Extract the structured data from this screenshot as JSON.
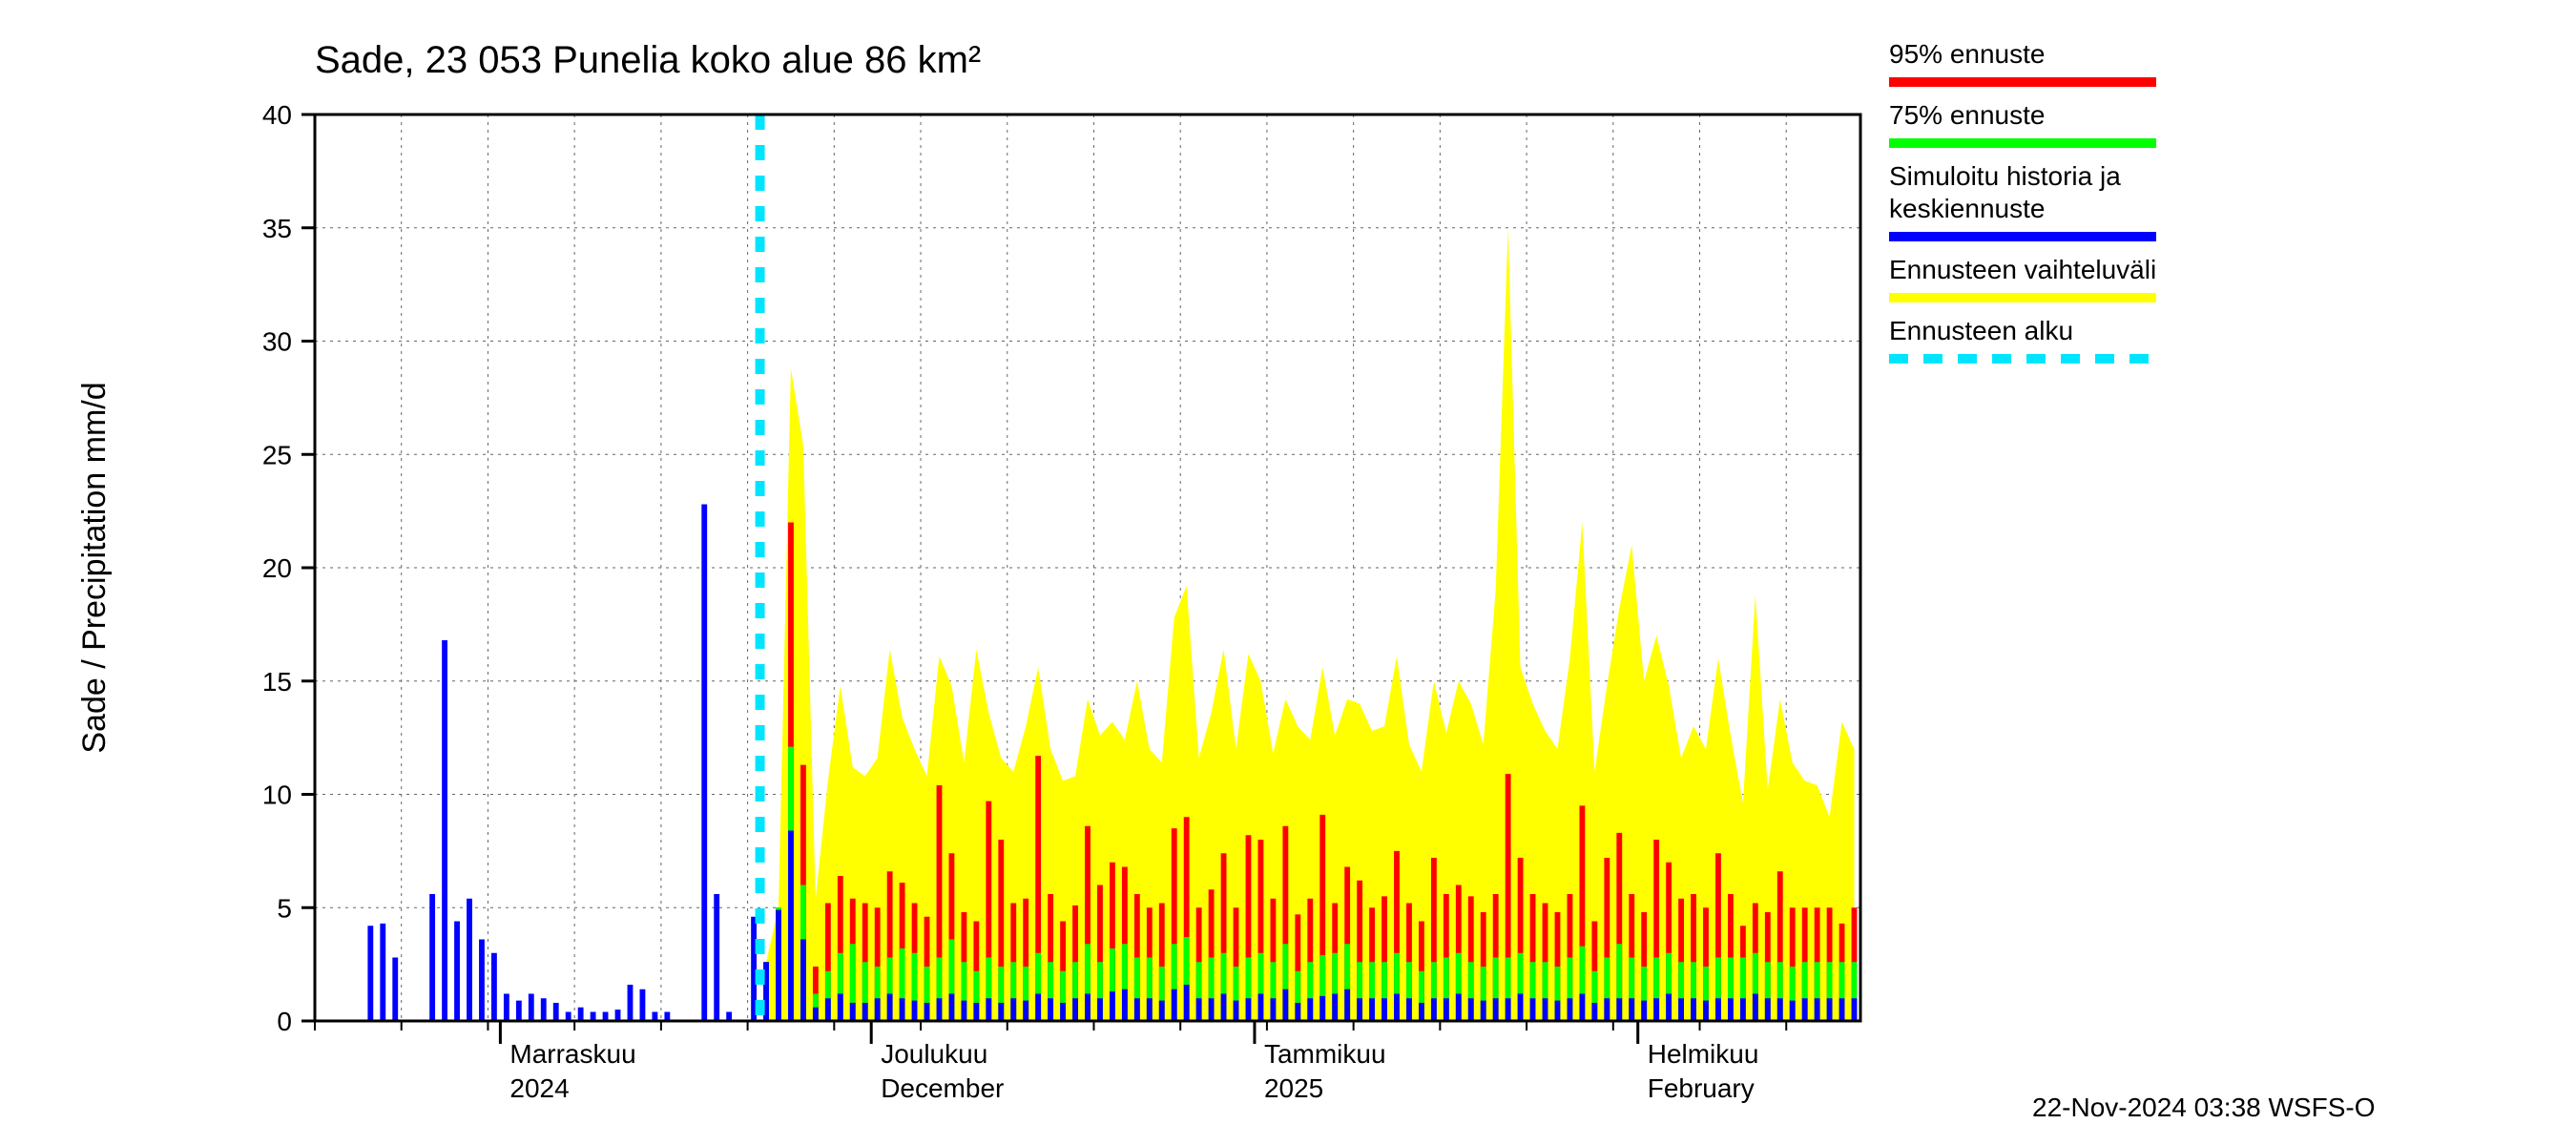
{
  "title": "Sade, 23 053 Punelia koko alue 86 km²",
  "ylabel": "Sade / Precipitation   mm/d",
  "footer": "22-Nov-2024 03:38 WSFS-O",
  "chart": {
    "type": "bar+area",
    "background_color": "#ffffff",
    "grid_color": "#666666",
    "grid_dash": "3,5",
    "axis_color": "#000000",
    "ylim": [
      0,
      40
    ],
    "ytick_step": 5,
    "yticks_labels": [
      "0",
      "5",
      "10",
      "15",
      "20",
      "25",
      "30",
      "35",
      "40"
    ],
    "xticks": [
      {
        "pos": 15,
        "label1": "Marraskuu",
        "label2": "2024"
      },
      {
        "pos": 45,
        "label1": "Joulukuu",
        "label2": "December"
      },
      {
        "pos": 76,
        "label1": "Tammikuu",
        "label2": "2025"
      },
      {
        "pos": 107,
        "label1": "Helmikuu",
        "label2": "February"
      }
    ],
    "x_minor_step": 7,
    "n_days": 125,
    "bar_width_ratio": 0.45,
    "forecast_start_day": 36,
    "series_colors": {
      "blue": "#0000ff",
      "green": "#00ff00",
      "red": "#ff0000",
      "yellow": "#ffff00",
      "cyan": "#00e5ff"
    },
    "history_blue": [
      0,
      0,
      0,
      0,
      4.2,
      4.3,
      2.8,
      0,
      0,
      5.6,
      16.8,
      4.4,
      5.4,
      3.6,
      3.0,
      1.2,
      0.9,
      1.2,
      1.0,
      0.8,
      0.4,
      0.6,
      0.4,
      0.4,
      0.5,
      1.6,
      1.4,
      0.4,
      0.4,
      0,
      0,
      22.8,
      5.6,
      0.4,
      0,
      4.6
    ],
    "forecast_blue": [
      2.6,
      4.9,
      8.4,
      3.6,
      0.6,
      1.0,
      1.2,
      0.8,
      0.8,
      1.0,
      1.2,
      1.0,
      0.9,
      0.8,
      1.0,
      1.2,
      0.9,
      0.8,
      1.0,
      0.8,
      1.0,
      0.9,
      1.2,
      1.0,
      0.8,
      1.0,
      1.2,
      1.0,
      1.3,
      1.4,
      1.0,
      1.0,
      0.9,
      1.4,
      1.6,
      1.0,
      1.0,
      1.2,
      0.9,
      1.0,
      1.2,
      1.0,
      1.4,
      0.8,
      1.0,
      1.1,
      1.2,
      1.4,
      1.0,
      1.0,
      1.0,
      1.2,
      1.0,
      0.8,
      1.0,
      1.0,
      1.2,
      1.0,
      0.9,
      1.0,
      1.0,
      1.2,
      1.0,
      1.0,
      0.9,
      1.0,
      1.2,
      0.8,
      1.0,
      1.0,
      1.0,
      0.9,
      1.0,
      1.2,
      1.0,
      1.0,
      0.9,
      1.0,
      1.0,
      1.0,
      1.2,
      1.0,
      1.0,
      0.9,
      1.0,
      1.0,
      1.0,
      1.0,
      1.0
    ],
    "forecast_green": [
      2.6,
      5.0,
      12.1,
      6.0,
      1.2,
      2.2,
      3.0,
      3.4,
      2.6,
      2.4,
      2.8,
      3.2,
      3.0,
      2.4,
      2.8,
      3.6,
      2.6,
      2.2,
      2.8,
      2.4,
      2.6,
      2.4,
      3.0,
      2.6,
      2.2,
      2.6,
      3.4,
      2.6,
      3.2,
      3.4,
      2.8,
      2.8,
      2.4,
      3.4,
      3.7,
      2.6,
      2.8,
      3.0,
      2.4,
      2.8,
      3.0,
      2.6,
      3.4,
      2.2,
      2.6,
      2.9,
      3.0,
      3.4,
      2.6,
      2.6,
      2.6,
      3.0,
      2.6,
      2.2,
      2.6,
      2.8,
      3.0,
      2.6,
      2.4,
      2.8,
      2.8,
      3.0,
      2.6,
      2.6,
      2.4,
      2.8,
      3.3,
      2.2,
      2.8,
      3.4,
      2.8,
      2.4,
      2.8,
      3.0,
      2.6,
      2.6,
      2.4,
      2.8,
      2.8,
      2.8,
      3.0,
      2.6,
      2.6,
      2.4,
      2.6,
      2.6,
      2.6,
      2.6,
      2.6
    ],
    "forecast_red": [
      2.6,
      5.0,
      22.0,
      11.3,
      2.4,
      5.2,
      6.4,
      5.4,
      5.2,
      5.0,
      6.6,
      6.1,
      5.2,
      4.6,
      10.4,
      7.4,
      4.8,
      4.4,
      9.7,
      8.0,
      5.2,
      5.4,
      11.7,
      5.6,
      4.4,
      5.1,
      8.6,
      6.0,
      7.0,
      6.8,
      5.6,
      5.0,
      5.2,
      8.5,
      9.0,
      5.0,
      5.8,
      7.4,
      5.0,
      8.2,
      8.0,
      5.4,
      8.6,
      4.7,
      5.4,
      9.1,
      5.2,
      6.8,
      6.2,
      5.0,
      5.5,
      7.5,
      5.2,
      4.4,
      7.2,
      5.6,
      6.0,
      5.5,
      4.8,
      5.6,
      10.9,
      7.2,
      5.6,
      5.2,
      4.8,
      5.6,
      9.5,
      4.4,
      7.2,
      8.3,
      5.6,
      4.8,
      8.0,
      7.0,
      5.4,
      5.6,
      5.0,
      7.4,
      5.6,
      4.2,
      5.2,
      4.8,
      6.6,
      5.0,
      5.0,
      5.0,
      5.0,
      4.3,
      5.0
    ],
    "forecast_yellow": [
      2.6,
      5.0,
      28.8,
      25.4,
      5.4,
      10.6,
      14.8,
      11.2,
      10.8,
      11.6,
      16.4,
      13.4,
      12.0,
      10.8,
      16.1,
      14.8,
      11.4,
      16.4,
      13.6,
      11.6,
      11.0,
      13.0,
      15.6,
      12.0,
      10.6,
      10.8,
      14.2,
      12.6,
      13.2,
      12.4,
      15.0,
      12.0,
      11.4,
      17.8,
      19.2,
      11.6,
      13.6,
      16.4,
      12.0,
      16.2,
      15.0,
      11.8,
      14.2,
      13.0,
      12.4,
      15.6,
      12.6,
      14.2,
      14.0,
      12.8,
      13.0,
      16.1,
      12.2,
      11.0,
      15.0,
      12.7,
      15.0,
      14.0,
      12.2,
      19.0,
      35.0,
      15.6,
      14.0,
      12.8,
      12.0,
      16.0,
      22.0,
      11.0,
      14.8,
      18.2,
      21.0,
      15.0,
      17.0,
      14.8,
      11.6,
      13.0,
      12.0,
      16.0,
      12.6,
      9.6,
      18.8,
      10.2,
      14.2,
      11.4,
      10.6,
      10.4,
      9.0,
      13.2,
      12.0
    ]
  },
  "legend": {
    "items": [
      {
        "label": "95% ennuste",
        "type": "line",
        "color": "#ff0000",
        "width": 10
      },
      {
        "label": "75% ennuste",
        "type": "line",
        "color": "#00ff00",
        "width": 10
      },
      {
        "label": "Simuloitu historia ja keskiennuste",
        "type": "line",
        "color": "#0000ff",
        "width": 10,
        "twoLine": true
      },
      {
        "label": "Ennusteen vaihteluväli",
        "type": "line",
        "color": "#ffff00",
        "width": 10
      },
      {
        "label": "Ennusteen alku",
        "type": "dash",
        "color": "#00e5ff",
        "width": 10
      }
    ]
  }
}
